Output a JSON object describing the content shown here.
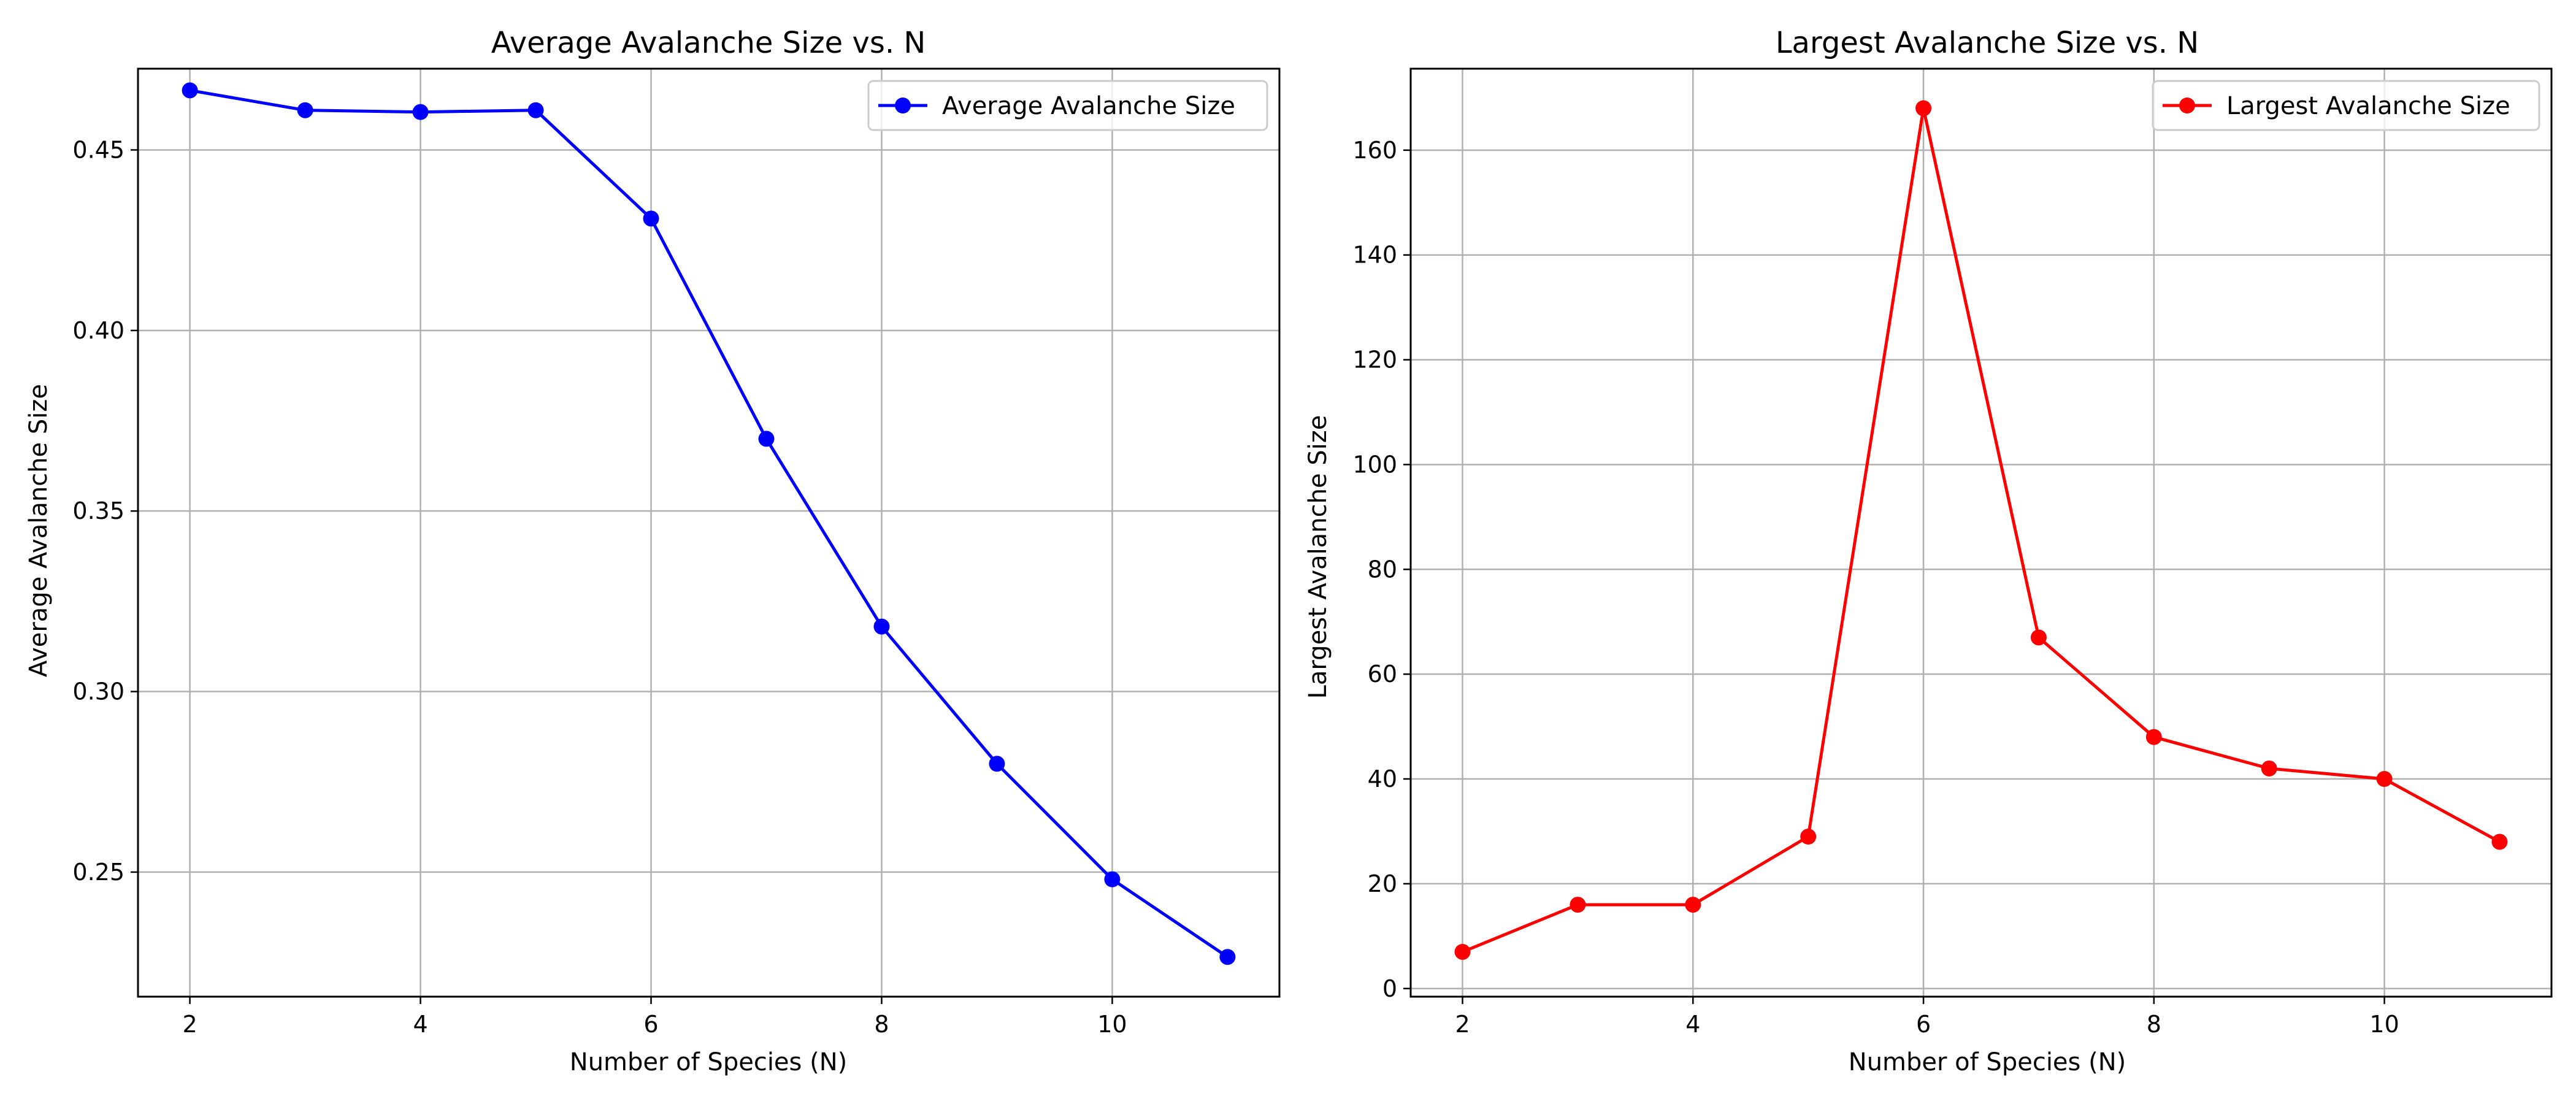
{
  "chart_data": [
    {
      "type": "line",
      "title": "Average Avalanche Size vs. N",
      "xlabel": "Number of Species (N)",
      "ylabel": "Average Avalanche Size",
      "x": [
        2,
        3,
        4,
        5,
        6,
        7,
        8,
        9,
        10,
        11
      ],
      "xticks": [
        "2",
        "4",
        "6",
        "8",
        "10"
      ],
      "yticks": [
        "0.25",
        "0.30",
        "0.35",
        "0.40",
        "0.45"
      ],
      "xlim": [
        1.55,
        11.45
      ],
      "ylim": [
        0.2155,
        0.4725
      ],
      "grid": true,
      "legend_position": "top-right",
      "series": [
        {
          "name": "Average Avalanche Size",
          "color": "#0000ff",
          "marker": "circle",
          "values": [
            0.4665,
            0.461,
            0.4605,
            0.461,
            0.431,
            0.37,
            0.318,
            0.28,
            0.248,
            0.2265
          ]
        }
      ]
    },
    {
      "type": "line",
      "title": "Largest Avalanche Size vs. N",
      "xlabel": "Number of Species (N)",
      "ylabel": "Largest Avalanche Size",
      "x": [
        2,
        3,
        4,
        5,
        6,
        7,
        8,
        9,
        10,
        11
      ],
      "xticks": [
        "2",
        "4",
        "6",
        "8",
        "10"
      ],
      "yticks": [
        "0",
        "20",
        "40",
        "60",
        "80",
        "100",
        "120",
        "140",
        "160"
      ],
      "xlim": [
        1.55,
        11.45
      ],
      "ylim": [
        -1.55,
        175.55
      ],
      "grid": true,
      "legend_position": "top-right",
      "series": [
        {
          "name": "Largest Avalanche Size",
          "color": "#ff0000",
          "marker": "circle",
          "values": [
            7,
            16,
            16,
            29,
            168,
            67,
            48,
            42,
            40,
            28
          ]
        }
      ]
    }
  ]
}
